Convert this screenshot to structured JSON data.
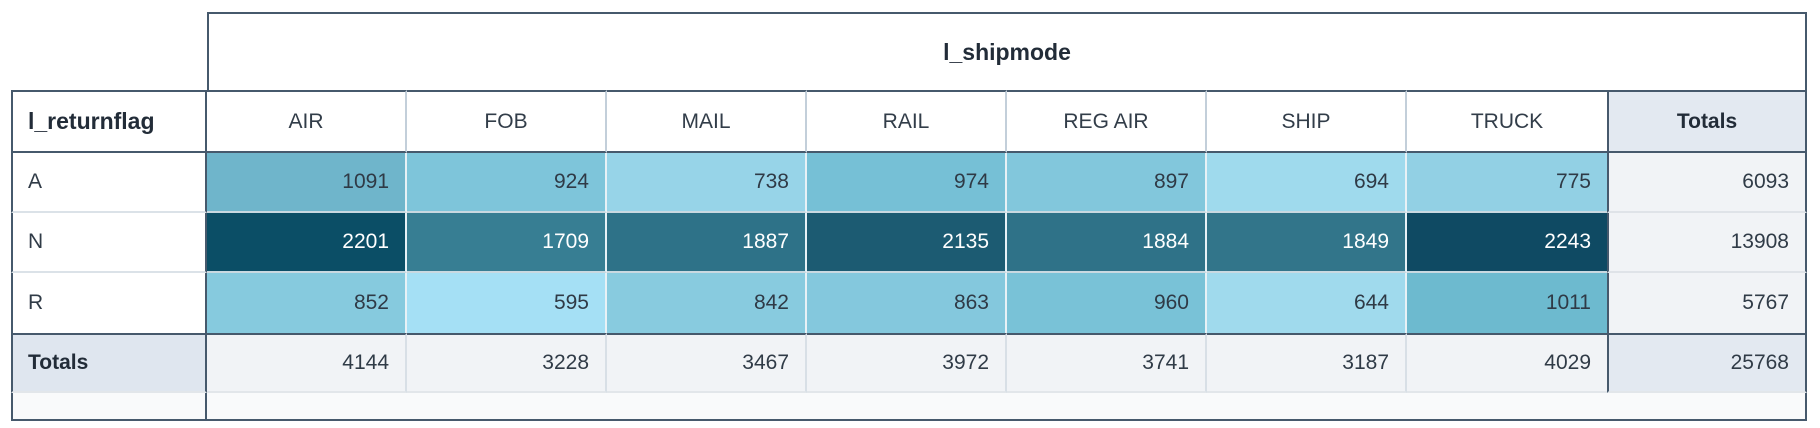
{
  "pivot": {
    "column_dimension": "l_shipmode",
    "row_dimension": "l_returnflag",
    "columns": [
      "AIR",
      "FOB",
      "MAIL",
      "RAIL",
      "REG AIR",
      "SHIP",
      "TRUCK"
    ],
    "totals_label": "Totals",
    "rows": [
      {
        "label": "A",
        "values": [
          1091,
          924,
          738,
          974,
          897,
          694,
          775
        ],
        "total": 6093,
        "colors": [
          "#6fb5cb",
          "#7ec5da",
          "#97d4e8",
          "#76c0d6",
          "#82c7dc",
          "#9fdaed",
          "#92d0e4"
        ]
      },
      {
        "label": "N",
        "values": [
          2201,
          1709,
          1887,
          2135,
          1884,
          1849,
          2243
        ],
        "total": 13908,
        "colors": [
          "#0b4e66",
          "#377e93",
          "#2e7288",
          "#1c5b72",
          "#2f7288",
          "#32758a",
          "#0f4a63"
        ]
      },
      {
        "label": "R",
        "values": [
          852,
          595,
          842,
          863,
          960,
          644,
          1011
        ],
        "total": 5767,
        "colors": [
          "#86cade",
          "#a5e0f5",
          "#88cbdf",
          "#84c8dd",
          "#79c2d7",
          "#a0daed",
          "#6dbacf"
        ]
      }
    ],
    "column_totals": [
      4144,
      3228,
      3467,
      3972,
      3741,
      3187,
      4029
    ],
    "grand_total": 25768
  },
  "chart_data": {
    "type": "heatmap",
    "title": "",
    "xlabel": "l_shipmode",
    "ylabel": "l_returnflag",
    "x_categories": [
      "AIR",
      "FOB",
      "MAIL",
      "RAIL",
      "REG AIR",
      "SHIP",
      "TRUCK"
    ],
    "y_categories": [
      "A",
      "N",
      "R"
    ],
    "values": [
      [
        1091,
        924,
        738,
        974,
        897,
        694,
        775
      ],
      [
        2201,
        1709,
        1887,
        2135,
        1884,
        1849,
        2243
      ],
      [
        852,
        595,
        842,
        863,
        960,
        644,
        1011
      ]
    ],
    "row_totals": [
      6093,
      13908,
      5767
    ],
    "column_totals": [
      4144,
      3228,
      3467,
      3972,
      3741,
      3187,
      4029
    ],
    "grand_total": 25768,
    "color_scale": {
      "min_value": 595,
      "max_value": 2243,
      "min_color": "#a5e0f5",
      "max_color": "#0f4a63"
    },
    "legend": "off",
    "grid": "off"
  }
}
